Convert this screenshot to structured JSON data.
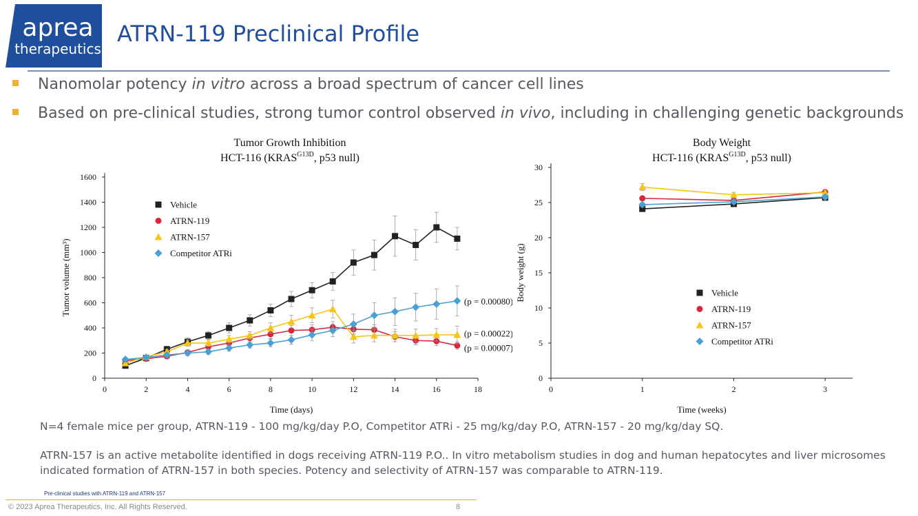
{
  "logo": {
    "line1": "aprea",
    "line2": "therapeutics",
    "bg": "#1f4e9c"
  },
  "slide_title": "ATRN-119 Preclinical Profile",
  "bullets": [
    {
      "pre": "Nanomolar potency ",
      "em": "in vitro",
      "post": " across a broad spectrum of cancer cell lines"
    },
    {
      "pre": "Based on pre-clinical studies, strong tumor control observed ",
      "em": "in vivo",
      "post": ", including in challenging genetic backgrounds"
    }
  ],
  "colors": {
    "vehicle": "#222222",
    "atrn119": "#d7263d",
    "atrn157": "#f5c518",
    "competitor": "#4a9fd4",
    "accent": "#f0b030"
  },
  "chart_data": [
    {
      "type": "line",
      "title": "Tumor Growth Inhibition",
      "subtitle_pre": "HCT-116 (KRAS",
      "subtitle_sup": "G13D",
      "subtitle_post": ", p53 null)",
      "xlabel": "Time (days)",
      "ylabel": "Tumor volume (mm³)",
      "xlim": [
        0,
        18
      ],
      "ylim": [
        0,
        1600
      ],
      "xticks": [
        0,
        2,
        4,
        6,
        8,
        10,
        12,
        14,
        16,
        18
      ],
      "yticks": [
        0,
        200,
        400,
        600,
        800,
        1000,
        1200,
        1400,
        1600
      ],
      "legend": "top-left",
      "series": [
        {
          "name": "Vehicle",
          "key": "vehicle",
          "marker": "square",
          "x": [
            1,
            2,
            3,
            4,
            5,
            6,
            7,
            8,
            9,
            10,
            11,
            12,
            13,
            14,
            15,
            16,
            17
          ],
          "y": [
            100,
            160,
            230,
            290,
            340,
            400,
            460,
            540,
            630,
            700,
            770,
            920,
            980,
            1130,
            1060,
            1200,
            1110
          ],
          "err": [
            15,
            20,
            25,
            30,
            30,
            40,
            45,
            50,
            60,
            60,
            70,
            100,
            120,
            160,
            120,
            120,
            90
          ]
        },
        {
          "name": "ATRN-119",
          "key": "atrn119",
          "marker": "circle",
          "x": [
            1,
            2,
            3,
            4,
            5,
            6,
            7,
            8,
            9,
            10,
            11,
            12,
            13,
            14,
            15,
            16,
            17
          ],
          "y": [
            140,
            155,
            175,
            205,
            250,
            280,
            320,
            350,
            380,
            385,
            405,
            390,
            385,
            330,
            300,
            295,
            260
          ],
          "err": [
            10,
            15,
            20,
            20,
            25,
            30,
            30,
            35,
            40,
            40,
            45,
            40,
            40,
            40,
            35,
            35,
            30
          ]
        },
        {
          "name": "ATRN-157",
          "key": "atrn157",
          "marker": "triangle",
          "x": [
            1,
            2,
            3,
            4,
            5,
            6,
            7,
            8,
            9,
            10,
            11,
            12,
            13,
            14,
            15,
            16,
            17
          ],
          "y": [
            120,
            170,
            210,
            280,
            280,
            310,
            340,
            400,
            450,
            500,
            550,
            330,
            340,
            340,
            340,
            345,
            345
          ],
          "err": [
            10,
            15,
            20,
            25,
            25,
            30,
            30,
            40,
            50,
            60,
            70,
            50,
            50,
            50,
            50,
            50,
            70
          ]
        },
        {
          "name": "Competitor ATRi",
          "key": "competitor",
          "marker": "diamond",
          "x": [
            1,
            2,
            3,
            4,
            5,
            6,
            7,
            8,
            9,
            10,
            11,
            12,
            13,
            14,
            15,
            16,
            17
          ],
          "y": [
            150,
            165,
            185,
            200,
            210,
            240,
            265,
            280,
            305,
            345,
            380,
            430,
            500,
            530,
            565,
            590,
            615
          ],
          "err": [
            10,
            15,
            15,
            20,
            20,
            25,
            25,
            30,
            35,
            45,
            50,
            80,
            100,
            110,
            110,
            120,
            120
          ]
        }
      ],
      "annotations": [
        {
          "text": "(p = 0.00080)",
          "x": 17,
          "y": 615
        },
        {
          "text": "(p = 0.00022)",
          "x": 17,
          "y": 360
        },
        {
          "text": "(p = 0.00007)",
          "x": 17,
          "y": 245
        }
      ]
    },
    {
      "type": "line",
      "title": "Body Weight",
      "subtitle_pre": "HCT-116 (KRAS",
      "subtitle_sup": "G13D",
      "subtitle_post": ", p53 null)",
      "xlabel": "Time (weeks)",
      "ylabel": "Body weight (g)",
      "xlim": [
        0,
        3.3
      ],
      "ylim": [
        0,
        30
      ],
      "xticks": [
        0,
        1,
        2,
        3
      ],
      "yticks": [
        0,
        5,
        10,
        15,
        20,
        25,
        30
      ],
      "legend": "center",
      "series": [
        {
          "name": "Vehicle",
          "key": "vehicle",
          "marker": "square",
          "x": [
            1,
            2,
            3
          ],
          "y": [
            24.1,
            24.8,
            25.7
          ],
          "err": [
            0.3,
            0.3,
            0.4
          ]
        },
        {
          "name": "ATRN-119",
          "key": "atrn119",
          "marker": "circle",
          "x": [
            1,
            2,
            3
          ],
          "y": [
            25.6,
            25.3,
            26.5
          ],
          "err": [
            0.3,
            0.3,
            0.3
          ]
        },
        {
          "name": "ATRN-157",
          "key": "atrn157",
          "marker": "triangle",
          "x": [
            1,
            2,
            3
          ],
          "y": [
            27.2,
            26.1,
            26.4
          ],
          "err": [
            0.5,
            0.3,
            0.3
          ]
        },
        {
          "name": "Competitor ATRi",
          "key": "competitor",
          "marker": "diamond",
          "x": [
            1,
            2,
            3
          ],
          "y": [
            24.7,
            25.1,
            25.8
          ],
          "err": [
            0.3,
            0.3,
            0.3
          ]
        }
      ]
    }
  ],
  "notes": {
    "n1": "N=4 female mice per group, ATRN-119 - 100 mg/kg/day P.O, Competitor ATRi - 25 mg/kg/day P.O, ATRN-157 - 20 mg/kg/day SQ.",
    "n2": "ATRN-157 is an active metabolite identified in dogs receiving ATRN-119 P.O.. In vitro metabolism studies in dog and human hepatocytes and liver microsomes indicated formation of ATRN-157 in both species. Potency and selectivity of ATRN-157 was comparable to ATRN-119."
  },
  "footer": {
    "small": "Pre-clinical studies with ATRN-119 and ATRN-157",
    "copyright": "© 2023 Aprea Therapeutics, Inc. All Rights Reserved.",
    "page": "8"
  }
}
